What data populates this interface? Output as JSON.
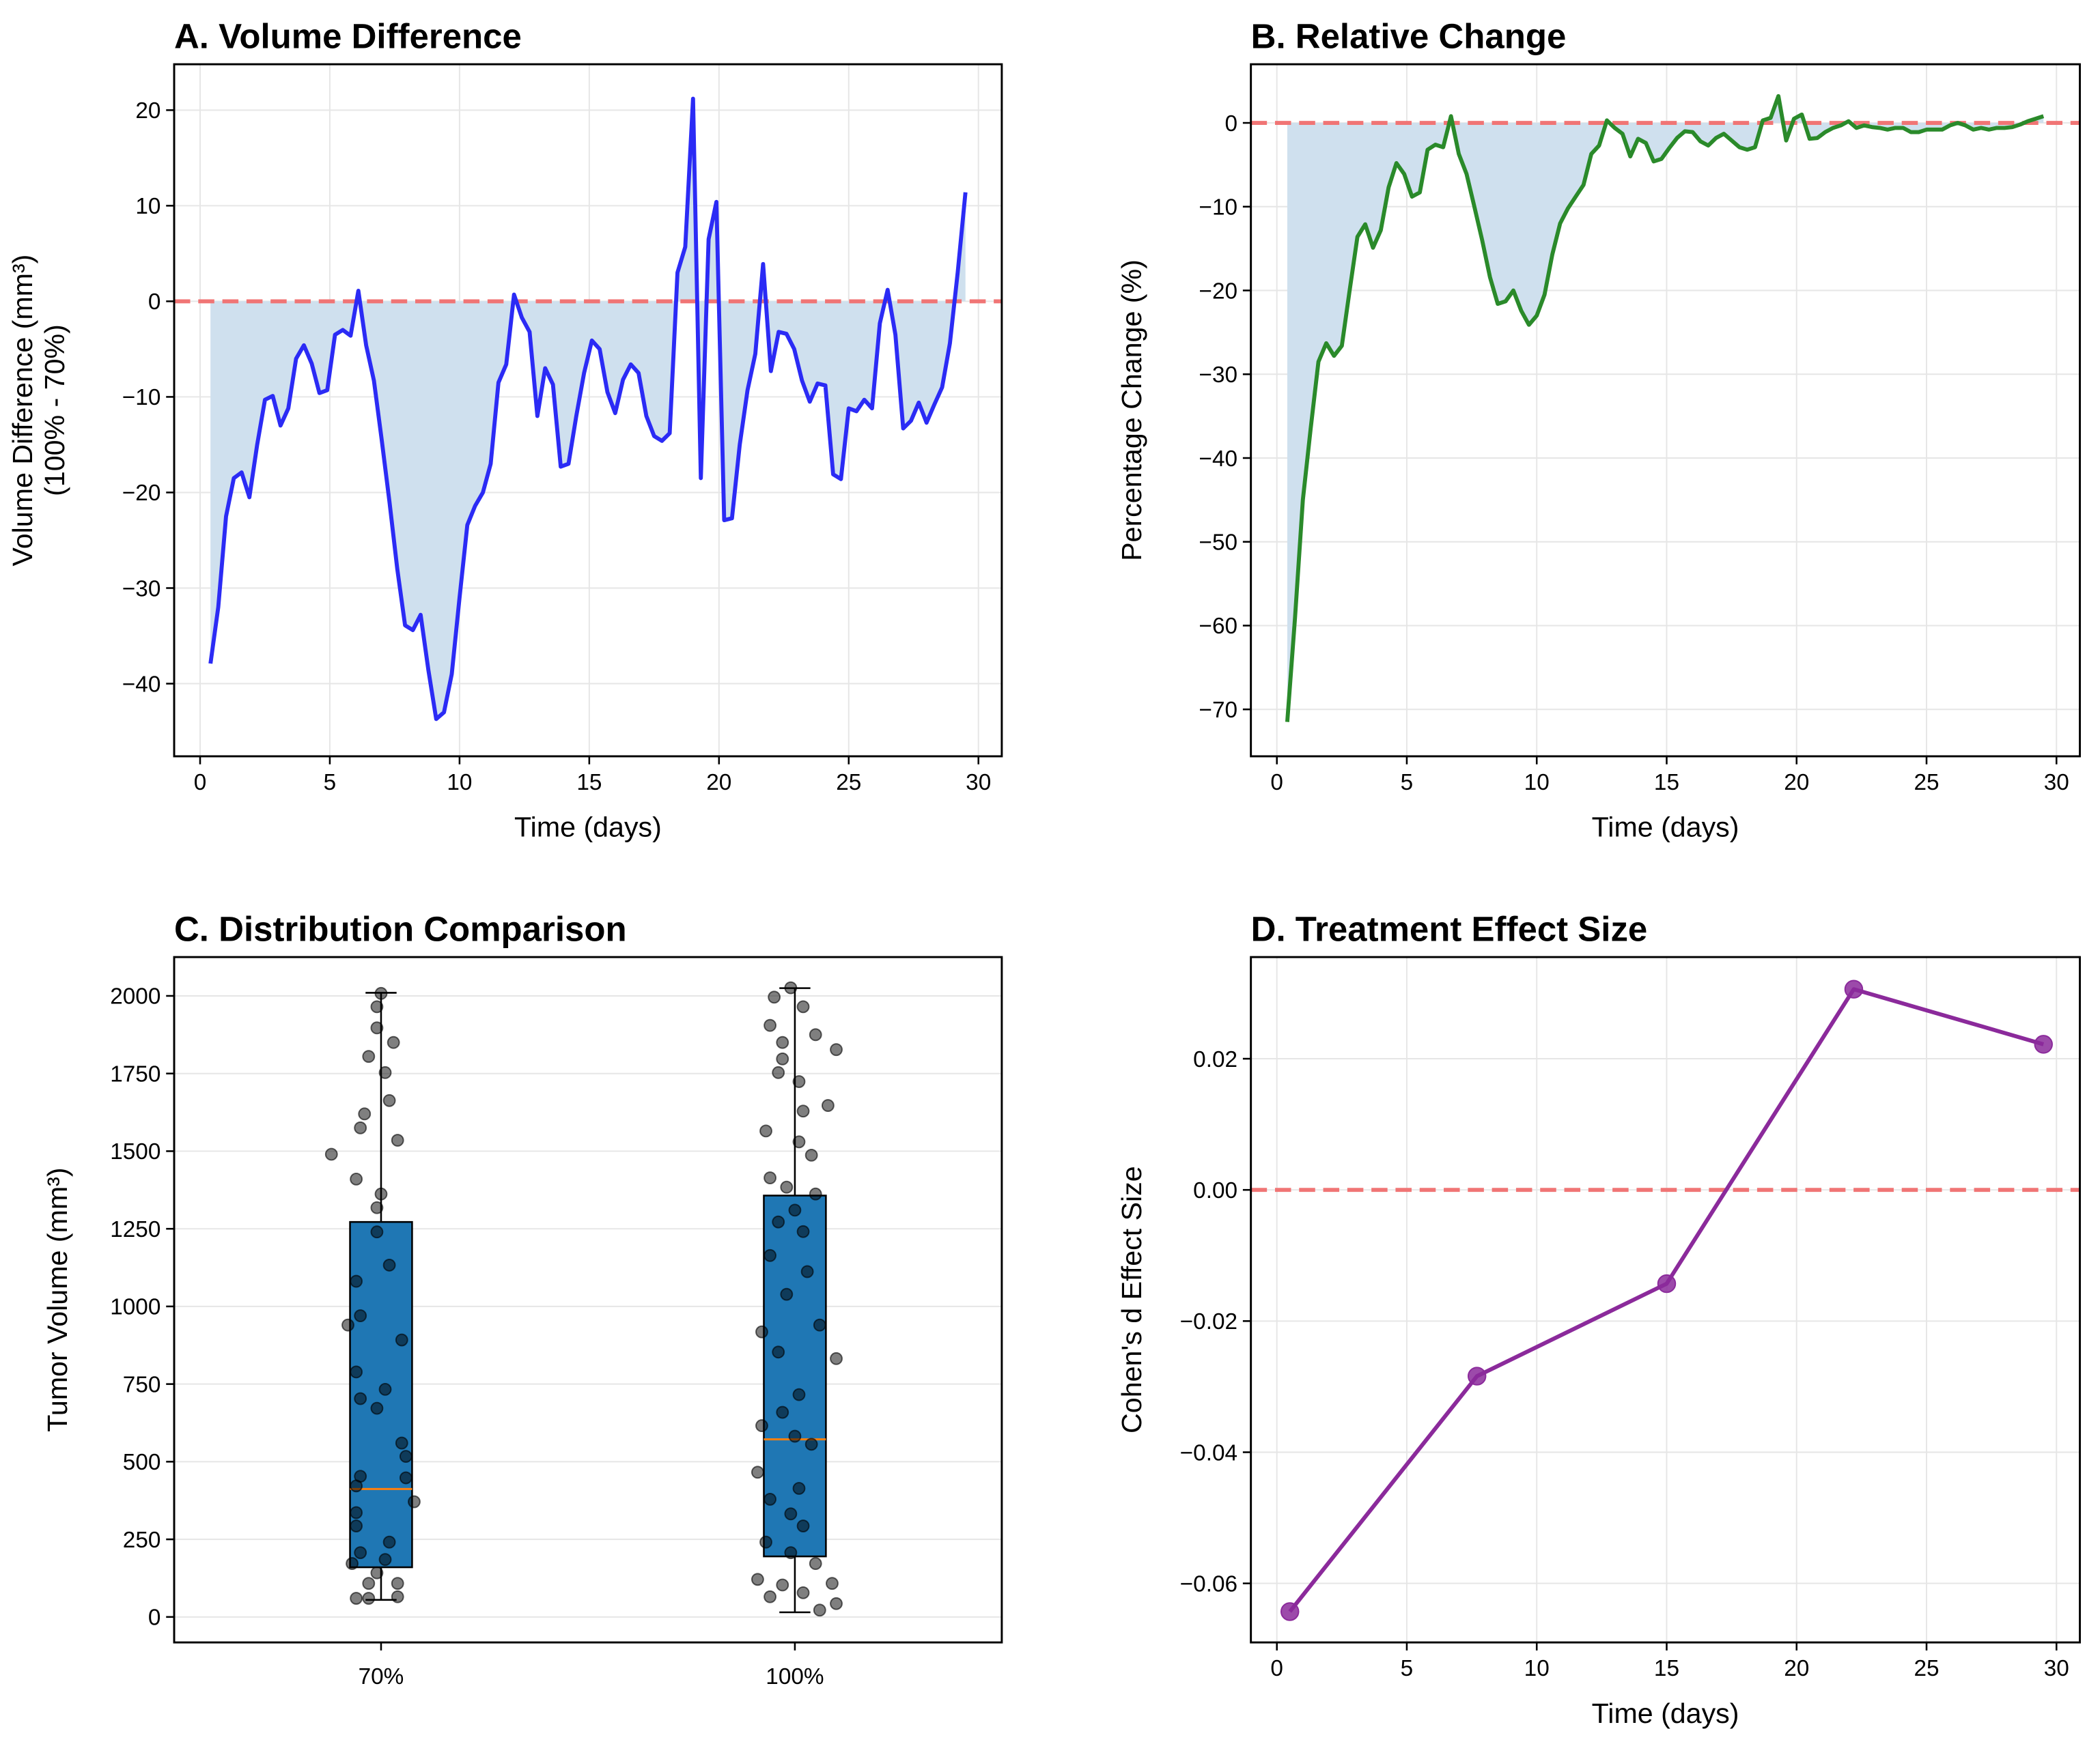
{
  "chart_data": [
    {
      "type": "line",
      "title": "A. Volume Difference",
      "xlabel": "Time (days)",
      "ylabel": [
        "Volume Difference (mm³)",
        "(100% - 70%)"
      ],
      "x": [
        0.4,
        0.7,
        1.0,
        1.3,
        1.6,
        1.9,
        2.2,
        2.5,
        2.8,
        3.1,
        3.4,
        3.7,
        4.0,
        4.3,
        4.6,
        4.9,
        5.2,
        5.5,
        5.8,
        6.1,
        6.4,
        6.7,
        7.0,
        7.3,
        7.6,
        7.9,
        8.2,
        8.5,
        8.8,
        9.1,
        9.4,
        9.7,
        10.0,
        10.3,
        10.6,
        10.9,
        11.2,
        11.5,
        11.8,
        12.1,
        12.4,
        12.7,
        13.0,
        13.3,
        13.6,
        13.9,
        14.2,
        14.5,
        14.8,
        15.1,
        15.4,
        15.7,
        16.0,
        16.3,
        16.6,
        16.9,
        17.2,
        17.5,
        17.8,
        18.1,
        18.4,
        18.7,
        19.0,
        19.3,
        19.6,
        19.9,
        20.2,
        20.5,
        20.8,
        21.1,
        21.4,
        21.7,
        22.0,
        22.3,
        22.6,
        22.9,
        23.2,
        23.5,
        23.8,
        24.1,
        24.4,
        24.7,
        25.0,
        25.3,
        25.6,
        25.9,
        26.2,
        26.5,
        26.8,
        27.1,
        27.4,
        27.7,
        28.0,
        28.3,
        28.6,
        28.9,
        29.2,
        29.5
      ],
      "series": [
        {
          "color": "#2b2bf5",
          "values": [
            -37.9,
            -32,
            -22.5,
            -18.5,
            -17.9,
            -20.5,
            -15,
            -10.3,
            -9.9,
            -13,
            -11.2,
            -6,
            -4.6,
            -6.5,
            -9.6,
            -9.3,
            -3.5,
            -3,
            -3.6,
            1.1,
            -4.6,
            -8.3,
            -14.5,
            -21,
            -28,
            -33.9,
            -34.4,
            -32.8,
            -38.6,
            -43.7,
            -43,
            -39,
            -31,
            -23.4,
            -21.4,
            -20,
            -17,
            -8.5,
            -6.6,
            0.7,
            -1.7,
            -3.2,
            -12,
            -7,
            -8.7,
            -17.3,
            -17,
            -12,
            -7.5,
            -4.1,
            -5,
            -9.5,
            -11.7,
            -8.2,
            -6.6,
            -7.5,
            -12,
            -14.1,
            -14.6,
            -13.8,
            3,
            5.7,
            21.2,
            -18.5,
            6.5,
            10.4,
            -22.9,
            -22.7,
            -15,
            -9.3,
            -5.5,
            3.9,
            -7.3,
            -3.2,
            -3.4,
            -5,
            -8.3,
            -10.5,
            -8.6,
            -8.8,
            -18.1,
            -18.6,
            -11.2,
            -11.5,
            -10.3,
            -11.2,
            -2.3,
            1.2,
            -3.5,
            -13.3,
            -12.5,
            -10.6,
            -12.7,
            -10.8,
            -9,
            -4.4,
            3,
            11.4
          ]
        }
      ],
      "fill_to_zero": true,
      "fill_color": "#cfe0ee",
      "hline": 0,
      "hline_color": "#f07575",
      "xlim": [
        -1.0,
        30.9
      ],
      "xticks": [
        0,
        5,
        10,
        15,
        20,
        25,
        30
      ],
      "ylim": [
        -47.6,
        24.8
      ],
      "yticks": [
        {
          "value": -40,
          "label": "−40"
        },
        {
          "value": -30,
          "label": "−30"
        },
        {
          "value": -20,
          "label": "−20"
        },
        {
          "value": -10,
          "label": "−10"
        },
        0,
        10,
        20
      ],
      "grid": true
    },
    {
      "type": "line",
      "title": "B. Relative Change",
      "xlabel": "Time (days)",
      "ylabel": [
        "Percentage Change (%)"
      ],
      "x": [
        0.4,
        0.7,
        1.0,
        1.3,
        1.6,
        1.9,
        2.2,
        2.5,
        2.8,
        3.1,
        3.4,
        3.7,
        4.0,
        4.3,
        4.6,
        4.9,
        5.2,
        5.5,
        5.8,
        6.1,
        6.4,
        6.7,
        7.0,
        7.3,
        7.6,
        7.9,
        8.2,
        8.5,
        8.8,
        9.1,
        9.4,
        9.7,
        10.0,
        10.3,
        10.6,
        10.9,
        11.2,
        11.5,
        11.8,
        12.1,
        12.4,
        12.7,
        13.0,
        13.3,
        13.6,
        13.9,
        14.2,
        14.5,
        14.8,
        15.1,
        15.4,
        15.7,
        16.0,
        16.3,
        16.6,
        16.9,
        17.2,
        17.5,
        17.8,
        18.1,
        18.4,
        18.7,
        19.0,
        19.3,
        19.6,
        19.9,
        20.2,
        20.5,
        20.8,
        21.1,
        21.4,
        21.7,
        22.0,
        22.3,
        22.6,
        22.9,
        23.2,
        23.5,
        23.8,
        24.1,
        24.4,
        24.7,
        25.0,
        25.3,
        25.6,
        25.9,
        26.2,
        26.5,
        26.8,
        27.1,
        27.4,
        27.7,
        28.0,
        28.3,
        28.6,
        28.9,
        29.2,
        29.5
      ],
      "series": [
        {
          "color": "#2a8a2a",
          "values": [
            -71.5,
            -59,
            -45,
            -36.5,
            -28.5,
            -26.3,
            -27.8,
            -26.6,
            -20,
            -13.6,
            -12.1,
            -14.9,
            -12.8,
            -7.7,
            -4.8,
            -6.1,
            -8.8,
            -8.3,
            -3.2,
            -2.6,
            -2.9,
            0.8,
            -3.7,
            -6.1,
            -10,
            -14,
            -18.4,
            -21.6,
            -21.3,
            -20,
            -22.4,
            -24.1,
            -23,
            -20.5,
            -15.7,
            -12,
            -10.2,
            -8.8,
            -7.4,
            -3.7,
            -2.7,
            0.3,
            -0.6,
            -1.3,
            -4,
            -1.9,
            -2.4,
            -4.6,
            -4.3,
            -3,
            -1.8,
            -1,
            -1.1,
            -2.2,
            -2.7,
            -1.8,
            -1.3,
            -2.1,
            -2.9,
            -3.2,
            -2.9,
            0.3,
            0.6,
            3.2,
            -2.1,
            0.5,
            1,
            -1.9,
            -1.8,
            -1.1,
            -0.6,
            -0.3,
            0.2,
            -0.6,
            -0.3,
            -0.5,
            -0.6,
            -0.8,
            -0.6,
            -0.6,
            -1.1,
            -1.1,
            -0.8,
            -0.8,
            -0.8,
            -0.3,
            0,
            -0.3,
            -0.8,
            -0.6,
            -0.8,
            -0.6,
            -0.6,
            -0.5,
            -0.2,
            0.2,
            0.5,
            0.8
          ]
        }
      ],
      "fill_to_zero": true,
      "fill_color": "#cfe0ee",
      "hline": 0,
      "hline_color": "#f07575",
      "xlim": [
        -1.0,
        30.9
      ],
      "xticks": [
        0,
        5,
        10,
        15,
        20,
        25,
        30
      ],
      "ylim": [
        -75.6,
        7.0
      ],
      "yticks": [
        {
          "value": -70,
          "label": "−70"
        },
        {
          "value": -60,
          "label": "−60"
        },
        {
          "value": -50,
          "label": "−50"
        },
        {
          "value": -40,
          "label": "−40"
        },
        {
          "value": -30,
          "label": "−30"
        },
        {
          "value": -20,
          "label": "−20"
        },
        {
          "value": -10,
          "label": "−10"
        },
        0
      ],
      "grid": true
    },
    {
      "type": "box",
      "title": "C. Distribution Comparison",
      "ylabel": [
        "Tumor Volume (mm³)"
      ],
      "categories": [
        "70%",
        "100%"
      ],
      "box_color": "#1f77b4",
      "median_color": "#ff7f0e",
      "groups": [
        {
          "whisker_low": 55,
          "q1": 160,
          "median": 412,
          "q3": 1272,
          "whisker_high": 2010,
          "points_x": [
            1.0,
            0.99,
            0.99,
            1.03,
            0.97,
            1.01,
            1.02,
            0.96,
            0.95,
            0.88,
            1.04,
            0.94,
            1.0,
            0.99,
            0.99,
            1.02,
            0.94,
            0.95,
            0.92,
            1.05,
            0.94,
            1.01,
            0.95,
            0.99,
            1.05,
            1.06,
            0.95,
            1.06,
            0.94,
            1.08,
            0.94,
            0.94,
            1.02,
            0.95,
            1.01,
            0.93,
            0.99,
            0.97,
            1.04,
            0.94,
            0.97,
            1.04
          ],
          "points_y": [
            2008,
            1965,
            1897,
            1850,
            1805,
            1753,
            1663,
            1620,
            1575,
            1490,
            1535,
            1410,
            1362,
            1318,
            1240,
            1133,
            1081,
            970,
            940,
            892,
            789,
            733,
            703,
            672,
            560,
            517,
            453,
            448,
            422,
            371,
            336,
            293,
            241,
            207,
            185,
            172,
            142,
            108,
            108,
            60,
            60,
            65
          ]
        },
        {
          "whisker_low": 15,
          "q1": 195,
          "median": 572,
          "q3": 1357,
          "whisker_high": 2025,
          "points_x": [
            1.99,
            1.95,
            2.02,
            1.94,
            1.97,
            2.05,
            1.97,
            1.96,
            2.01,
            2.1,
            1.93,
            2.02,
            2.08,
            2.01,
            2.04,
            1.94,
            1.98,
            2.05,
            2.0,
            1.96,
            2.02,
            1.94,
            2.03,
            1.98,
            1.92,
            2.06,
            1.96,
            2.01,
            2.1,
            1.97,
            1.92,
            2.0,
            2.04,
            1.91,
            2.01,
            1.94,
            1.99,
            2.02,
            1.93,
            1.99,
            2.05,
            1.91,
            1.97,
            2.02,
            2.09,
            1.94,
            2.06,
            2.1
          ],
          "points_y": [
            2026,
            1996,
            1965,
            1905,
            1850,
            1875,
            1797,
            1753,
            1724,
            1827,
            1565,
            1629,
            1647,
            1530,
            1487,
            1414,
            1384,
            1362,
            1310,
            1272,
            1241,
            1164,
            1112,
            1039,
            918,
            940,
            853,
            716,
            832,
            659,
            616,
            582,
            556,
            466,
            414,
            379,
            332,
            293,
            241,
            207,
            172,
            121,
            103,
            78,
            108,
            65,
            22,
            43
          ]
        }
      ],
      "xlim": [
        0.5,
        2.5
      ],
      "ylim": [
        -82,
        2125
      ],
      "yticks": [
        0,
        250,
        500,
        750,
        1000,
        1250,
        1500,
        1750,
        2000
      ],
      "grid": true
    },
    {
      "type": "line",
      "title": "D. Treatment Effect Size",
      "xlabel": "Time (days)",
      "ylabel": [
        "Cohen's d Effect Size"
      ],
      "x": [
        0.5,
        7.7,
        15.0,
        22.2,
        29.5
      ],
      "series": [
        {
          "color": "#8b2a9b",
          "marker": true,
          "values": [
            -0.0643,
            -0.0284,
            -0.0143,
            0.0306,
            0.0222
          ]
        }
      ],
      "hline": 0,
      "hline_color": "#f07575",
      "xlim": [
        -1.0,
        30.9
      ],
      "xticks": [
        0,
        5,
        10,
        15,
        20,
        25,
        30
      ],
      "ylim": [
        -0.069,
        0.0355
      ],
      "yticks": [
        {
          "value": -0.06,
          "label": "−0.06"
        },
        {
          "value": -0.04,
          "label": "−0.04"
        },
        {
          "value": -0.02,
          "label": "−0.02"
        },
        {
          "value": 0,
          "label": "0.00"
        },
        0.02
      ],
      "grid": true
    }
  ]
}
